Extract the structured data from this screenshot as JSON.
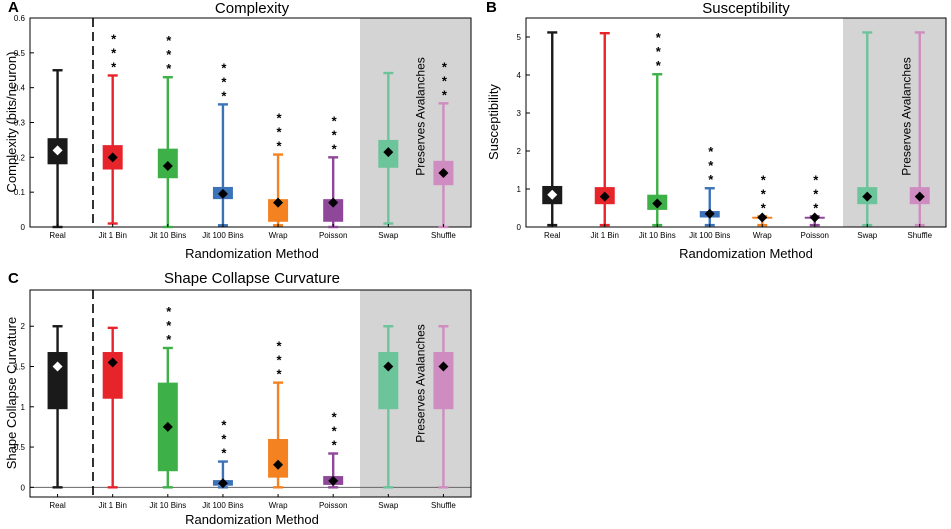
{
  "chart_data": [
    {
      "panel": "A",
      "type": "box",
      "title": "Complexity",
      "xlabel": "Randomization Method",
      "ylabel": "Complexity (bits/neuron)",
      "ylim": [
        0,
        0.6
      ],
      "yticks": [
        "0",
        "0.1",
        "0.2",
        "0.3",
        "0.4",
        "0.5",
        "0.6"
      ],
      "shaded_label": "Preserves Avalanches",
      "significance": "* * *",
      "categories": [
        {
          "name": "Real",
          "color": "#1a1a1a",
          "min": 0.0,
          "q1": 0.18,
          "median": 0.22,
          "mean": 0.22,
          "q3": 0.255,
          "max": 0.45,
          "sig": false
        },
        {
          "name": "Jit 1 Bin",
          "color": "#e8242b",
          "min": 0.01,
          "q1": 0.165,
          "median": 0.2,
          "mean": 0.2,
          "q3": 0.235,
          "max": 0.435,
          "sig": true
        },
        {
          "name": "Jit 10 Bins",
          "color": "#3eb048",
          "min": 0.0,
          "q1": 0.14,
          "median": 0.175,
          "mean": 0.175,
          "q3": 0.225,
          "max": 0.43,
          "sig": true
        },
        {
          "name": "Jit 100 Bins",
          "color": "#3c73b8",
          "min": 0.005,
          "q1": 0.08,
          "median": 0.095,
          "mean": 0.095,
          "q3": 0.115,
          "max": 0.352,
          "sig": true
        },
        {
          "name": "Wrap",
          "color": "#f58220",
          "min": 0.005,
          "q1": 0.015,
          "median": 0.07,
          "mean": 0.07,
          "q3": 0.08,
          "max": 0.208,
          "sig": true
        },
        {
          "name": "Poisson",
          "color": "#8f4799",
          "min": 0.0,
          "q1": 0.015,
          "median": 0.07,
          "mean": 0.07,
          "q3": 0.08,
          "max": 0.2,
          "sig": true
        },
        {
          "name": "Swap",
          "color": "#6cc49b",
          "min": 0.01,
          "q1": 0.17,
          "median": 0.215,
          "mean": 0.215,
          "q3": 0.25,
          "max": 0.442,
          "sig": false
        },
        {
          "name": "Shuffle",
          "color": "#cf8cc0",
          "min": 0.0,
          "q1": 0.12,
          "median": 0.155,
          "mean": 0.155,
          "q3": 0.19,
          "max": 0.355,
          "sig": true
        }
      ]
    },
    {
      "panel": "B",
      "type": "box",
      "title": "Susceptibility",
      "xlabel": "Randomization Method",
      "ylabel": "Susceptibility",
      "ylim": [
        0,
        5.5
      ],
      "yticks": [
        "0",
        "1",
        "2",
        "3",
        "4",
        "5"
      ],
      "shaded_label": "Preserves Avalanches",
      "significance": "* * *",
      "categories": [
        {
          "name": "Real",
          "color": "#1a1a1a",
          "min": 0.05,
          "q1": 0.6,
          "median": 0.85,
          "mean": 0.85,
          "q3": 1.08,
          "max": 5.12,
          "sig": false
        },
        {
          "name": "Jit 1 Bin",
          "color": "#e8242b",
          "min": 0.05,
          "q1": 0.6,
          "median": 0.8,
          "mean": 0.8,
          "q3": 1.05,
          "max": 5.1,
          "sig": false
        },
        {
          "name": "Jit 10 Bins",
          "color": "#3eb048",
          "min": 0.05,
          "q1": 0.45,
          "median": 0.62,
          "mean": 0.62,
          "q3": 0.85,
          "max": 4.02,
          "sig": true
        },
        {
          "name": "Jit 100 Bins",
          "color": "#3c73b8",
          "min": 0.05,
          "q1": 0.25,
          "median": 0.35,
          "mean": 0.35,
          "q3": 0.42,
          "max": 1.02,
          "sig": true
        },
        {
          "name": "Wrap",
          "color": "#f58220",
          "min": 0.05,
          "q1": 0.23,
          "median": 0.25,
          "mean": 0.25,
          "q3": 0.27,
          "max": 0.28,
          "sig": true
        },
        {
          "name": "Poisson",
          "color": "#8f4799",
          "min": 0.05,
          "q1": 0.23,
          "median": 0.25,
          "mean": 0.25,
          "q3": 0.27,
          "max": 0.28,
          "sig": true
        },
        {
          "name": "Swap",
          "color": "#6cc49b",
          "min": 0.05,
          "q1": 0.6,
          "median": 0.8,
          "mean": 0.8,
          "q3": 1.05,
          "max": 5.12,
          "sig": false
        },
        {
          "name": "Shuffle",
          "color": "#cf8cc0",
          "min": 0.05,
          "q1": 0.6,
          "median": 0.8,
          "mean": 0.8,
          "q3": 1.05,
          "max": 5.12,
          "sig": false
        }
      ]
    },
    {
      "panel": "C",
      "type": "box",
      "title": "Shape Collapse Curvature",
      "xlabel": "Randomization Method",
      "ylabel": "Shape Collapse Curvature",
      "ylim": [
        -0.12,
        2.45
      ],
      "yticks": [
        "0",
        "0.5",
        "1",
        "1.5",
        "2"
      ],
      "shaded_label": "Preserves Avalanches",
      "significance": "* * *",
      "categories": [
        {
          "name": "Real",
          "color": "#1a1a1a",
          "min": 0.0,
          "q1": 0.97,
          "median": 1.5,
          "mean": 1.5,
          "q3": 1.68,
          "max": 2.0,
          "sig": false
        },
        {
          "name": "Jit 1 Bin",
          "color": "#e8242b",
          "min": 0.0,
          "q1": 1.1,
          "median": 1.55,
          "mean": 1.55,
          "q3": 1.68,
          "max": 1.98,
          "sig": false
        },
        {
          "name": "Jit 10 Bins",
          "color": "#3eb048",
          "min": 0.0,
          "q1": 0.2,
          "median": 0.75,
          "mean": 0.75,
          "q3": 1.3,
          "max": 1.73,
          "sig": true
        },
        {
          "name": "Jit 100 Bins",
          "color": "#3c73b8",
          "min": 0.0,
          "q1": 0.02,
          "median": 0.05,
          "mean": 0.05,
          "q3": 0.09,
          "max": 0.32,
          "sig": true
        },
        {
          "name": "Wrap",
          "color": "#f58220",
          "min": 0.0,
          "q1": 0.12,
          "median": 0.28,
          "mean": 0.28,
          "q3": 0.6,
          "max": 1.3,
          "sig": true
        },
        {
          "name": "Poisson",
          "color": "#8f4799",
          "min": 0.0,
          "q1": 0.03,
          "median": 0.08,
          "mean": 0.08,
          "q3": 0.14,
          "max": 0.42,
          "sig": true
        },
        {
          "name": "Swap",
          "color": "#6cc49b",
          "min": 0.0,
          "q1": 0.97,
          "median": 1.5,
          "mean": 1.5,
          "q3": 1.68,
          "max": 2.0,
          "sig": false
        },
        {
          "name": "Shuffle",
          "color": "#cf8cc0",
          "min": 0.0,
          "q1": 0.97,
          "median": 1.5,
          "mean": 1.5,
          "q3": 1.68,
          "max": 2.0,
          "sig": false
        }
      ]
    }
  ]
}
